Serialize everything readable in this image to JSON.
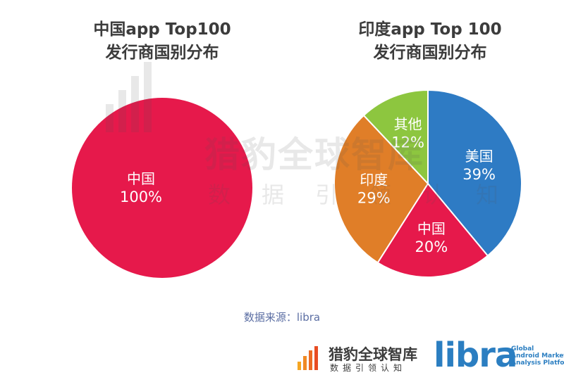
{
  "chart_data": [
    {
      "type": "pie",
      "title": "中国app Top100 发行商国别分布",
      "title_lines": [
        "中国app Top100",
        "发行商国别分布"
      ],
      "slices": [
        {
          "label": "中国",
          "value": 100,
          "display": "100%",
          "color": "#e6194b"
        }
      ]
    },
    {
      "type": "pie",
      "title": "印度app Top 100 发行商国别分布",
      "title_lines": [
        "印度app Top 100",
        "发行商国别分布"
      ],
      "slices": [
        {
          "label": "美国",
          "value": 39,
          "display": "39%",
          "color": "#2e7bc4"
        },
        {
          "label": "中国",
          "value": 20,
          "display": "20%",
          "color": "#e6194b"
        },
        {
          "label": "印度",
          "value": 29,
          "display": "29%",
          "color": "#e07e28"
        },
        {
          "label": "其他",
          "value": 12,
          "display": "12%",
          "color": "#8dc63f"
        }
      ]
    }
  ],
  "watermark": {
    "title": "猎豹全球智库",
    "subtitle": "数据引领认知"
  },
  "source": "数据来源：libra",
  "brands": {
    "cheetah": {
      "name": "猎豹全球智库",
      "subtitle": "数据引领认知"
    },
    "libra": {
      "name": "libra",
      "tagline": [
        "Global",
        "Android Market",
        "Analysis Platform"
      ]
    }
  }
}
